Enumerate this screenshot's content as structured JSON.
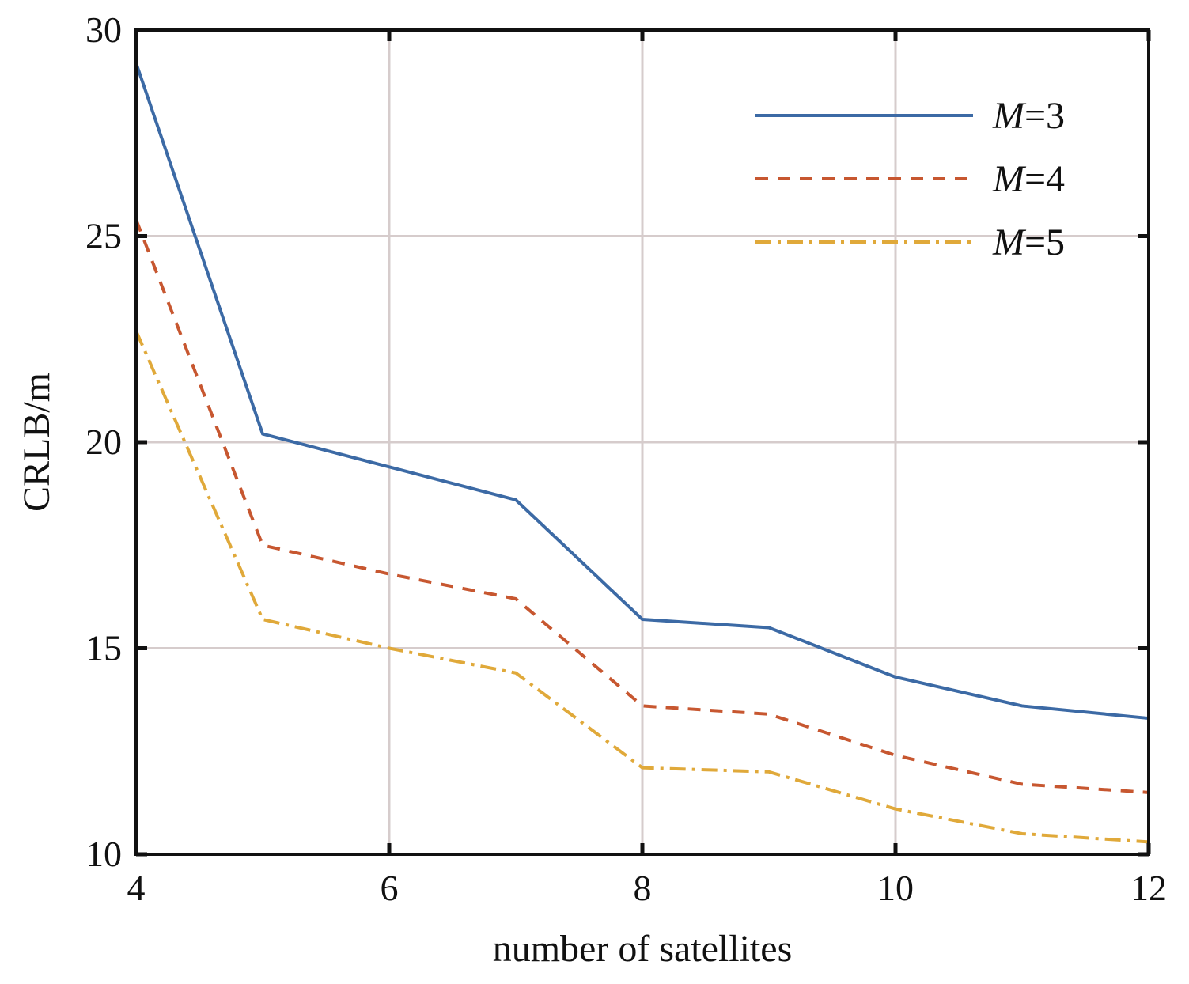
{
  "chart_data": {
    "type": "line",
    "xlabel": "number of satellites",
    "ylabel": "CRLB/m",
    "xlim": [
      4,
      12
    ],
    "ylim": [
      10,
      30
    ],
    "xticks": [
      4,
      6,
      8,
      10,
      12
    ],
    "yticks": [
      10,
      15,
      20,
      25,
      30
    ],
    "grid": true,
    "legend_position": "top-right",
    "x": [
      4,
      5,
      6,
      7,
      8,
      9,
      10,
      11,
      12
    ],
    "series": [
      {
        "name_symbol": "M",
        "name_rest": "=3",
        "color": "#3c6aa5",
        "dash": "solid",
        "values": [
          29.2,
          20.2,
          19.4,
          18.6,
          15.7,
          15.5,
          14.3,
          13.6,
          13.3
        ]
      },
      {
        "name_symbol": "M",
        "name_rest": "=4",
        "color": "#c75730",
        "dash": "dashed",
        "values": [
          25.4,
          17.5,
          16.8,
          16.2,
          13.6,
          13.4,
          12.4,
          11.7,
          11.5
        ]
      },
      {
        "name_symbol": "M",
        "name_rest": "=5",
        "color": "#e0a93a",
        "dash": "dashdot",
        "values": [
          22.7,
          15.7,
          15.0,
          14.4,
          12.1,
          12.0,
          11.1,
          10.5,
          10.3
        ]
      }
    ]
  }
}
